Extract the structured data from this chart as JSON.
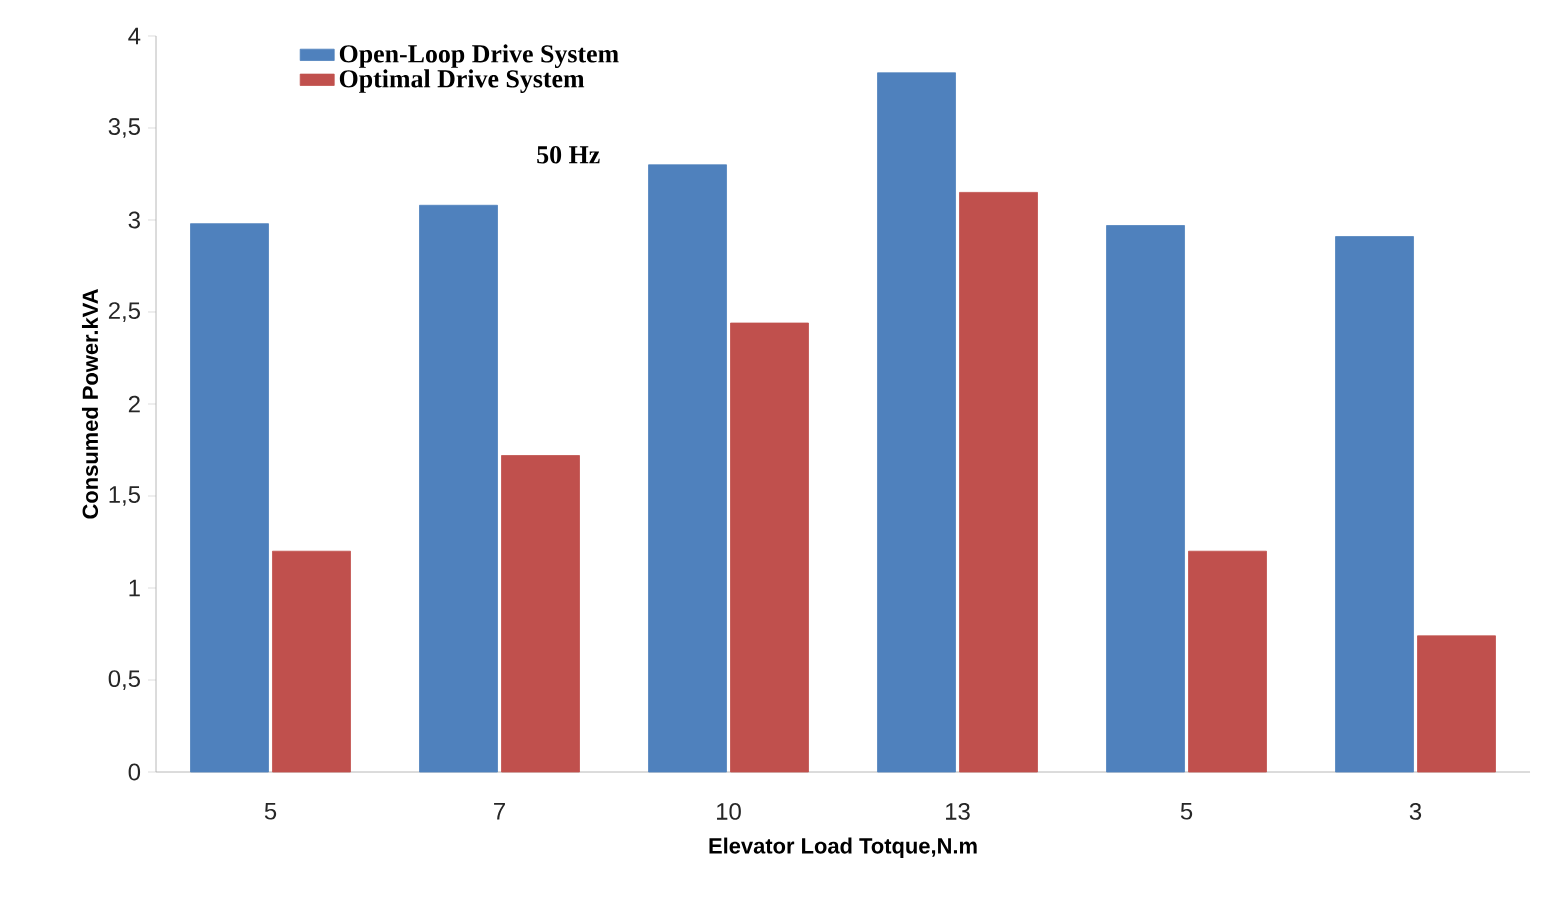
{
  "chart_data": {
    "type": "bar",
    "xlabel": "Elevator  Load Totque,N.m",
    "ylabel": "Consumed  Power.kVA",
    "categories": [
      "5",
      "7",
      "10",
      "13",
      "5",
      "3"
    ],
    "series": [
      {
        "name": "Open-Loop Drive System",
        "color": "#4f81bd",
        "values": [
          2.98,
          3.08,
          3.3,
          3.8,
          2.97,
          2.91
        ]
      },
      {
        "name": "Optimal Drive System",
        "color": "#c0504d",
        "values": [
          1.2,
          1.72,
          2.44,
          3.15,
          1.2,
          0.74
        ]
      }
    ],
    "ylim": [
      0,
      4
    ],
    "yticks": [
      0,
      {
        "value": 0.5,
        "label": "0,5"
      },
      1,
      {
        "value": 1.5,
        "label": "1,5"
      },
      2,
      {
        "value": 2.5,
        "label": "2,5"
      },
      3,
      {
        "value": 3.5,
        "label": "3,5"
      },
      4
    ],
    "legend": "top left",
    "grid": false,
    "annotations": [
      "50 Hz"
    ]
  }
}
